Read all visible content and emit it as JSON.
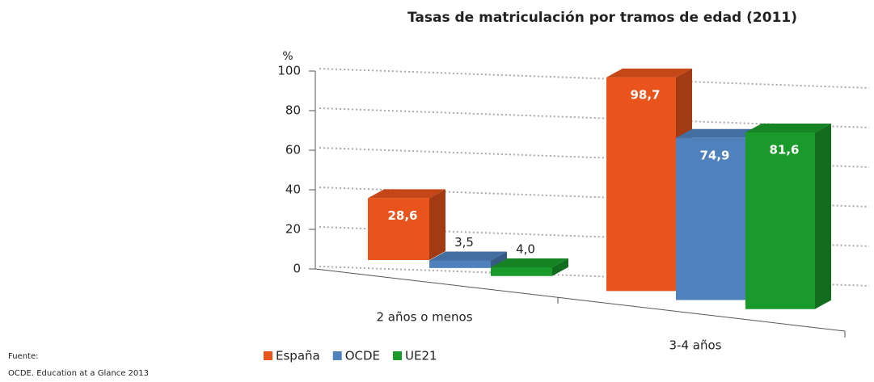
{
  "chart_data": {
    "type": "bar3d",
    "title": "Tasas de matriculación por tramos de edad (2011)",
    "y_unit_label": "%",
    "categories": [
      "2 años o menos",
      "3-4 años"
    ],
    "series": [
      {
        "name": "España",
        "color": "#e8541c",
        "values": [
          28.6,
          98.7
        ],
        "value_labels": [
          "28,6",
          "98,7"
        ]
      },
      {
        "name": "OCDE",
        "color": "#4f81bd",
        "values": [
          3.5,
          74.9
        ],
        "value_labels": [
          "3,5",
          "74,9"
        ]
      },
      {
        "name": "UE21",
        "color": "#1a9a2a",
        "values": [
          4.0,
          81.6
        ],
        "value_labels": [
          "4,0",
          "81,6"
        ]
      }
    ],
    "ylim": [
      0,
      100
    ],
    "yticks": [
      0,
      20,
      40,
      60,
      80,
      100
    ],
    "grid": true,
    "legend": "bottom"
  },
  "source": {
    "label": "Fuente:",
    "text": "OCDE. Education at a Glance 2013"
  }
}
